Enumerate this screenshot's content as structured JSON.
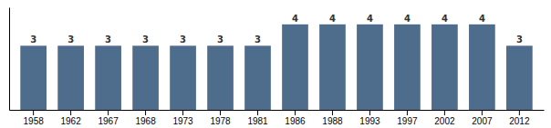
{
  "chart_data": {
    "type": "bar",
    "categories": [
      "1958",
      "1962",
      "1967",
      "1968",
      "1973",
      "1978",
      "1981",
      "1986",
      "1988",
      "1993",
      "1997",
      "2002",
      "2007",
      "2012"
    ],
    "values": [
      3,
      3,
      3,
      3,
      3,
      3,
      3,
      4,
      4,
      4,
      4,
      4,
      4,
      3
    ],
    "color": "#4e6d8c",
    "ylim": [
      0,
      4.8
    ],
    "tick_labels": "x",
    "data_labels": true
  }
}
